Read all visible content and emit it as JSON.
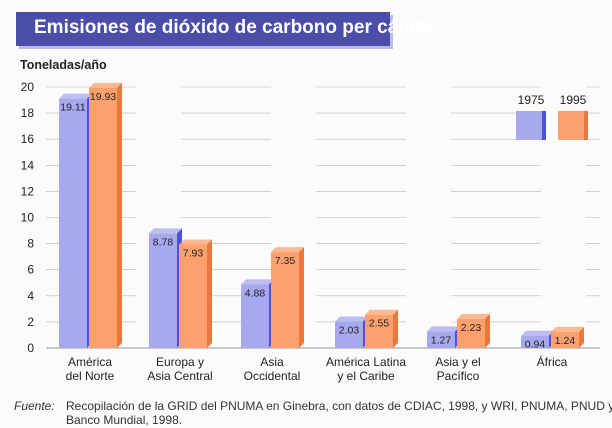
{
  "title": "Emisiones de dióxido de carbono per cápita",
  "source": {
    "label": "Fuente:",
    "text": "Recopilación de la GRID del PNUMA en Ginebra, con datos de CDIAC, 1998, y WRI, PNUMA, PNUD y Banco Mundial, 1998."
  },
  "colors": {
    "series_1975": "#a7a9ee",
    "series_1975_side": "#4a53d6",
    "series_1995": "#fca16e",
    "series_1995_side": "#e9793d",
    "title_bg": "#4a4ea8"
  },
  "chart_data": {
    "type": "bar",
    "ylabel": "Toneladas/año",
    "ylim": [
      0,
      20
    ],
    "yticks": [
      0,
      2,
      4,
      6,
      8,
      10,
      12,
      14,
      16,
      18,
      20
    ],
    "categories": [
      [
        "América",
        "del Norte"
      ],
      [
        "Europa y",
        "Asia Central"
      ],
      [
        "Asia",
        "Occidental"
      ],
      [
        "América Latina",
        "y el Caribe"
      ],
      [
        "Asia y el",
        "Pacífico"
      ],
      [
        "África"
      ]
    ],
    "series": [
      {
        "name": "1975",
        "values": [
          19.11,
          8.78,
          4.88,
          2.03,
          1.27,
          0.94
        ],
        "labels": [
          "19.11",
          "8.78",
          "4.88",
          "2.03",
          "1.27",
          "0.94"
        ]
      },
      {
        "name": "1995",
        "values": [
          19.93,
          7.93,
          7.35,
          2.55,
          2.23,
          1.24
        ],
        "labels": [
          "19.93",
          "7.93",
          "7.35",
          "2.55",
          "2.23",
          "1.24"
        ]
      }
    ],
    "legend": "top-right",
    "grid": true
  }
}
